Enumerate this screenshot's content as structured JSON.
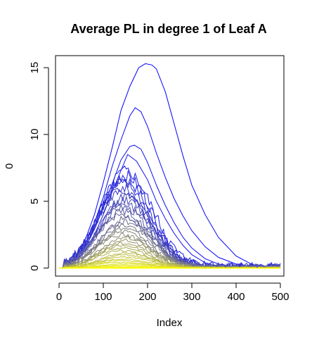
{
  "chart_data": {
    "type": "line",
    "title": "Average PL in degree 1 of Leaf A",
    "xlabel": "Index",
    "ylabel": "0",
    "xlim": [
      -8,
      508
    ],
    "ylim": [
      -0.6,
      15.9
    ],
    "xticks": [
      0,
      100,
      200,
      300,
      400,
      500
    ],
    "yticks": [
      0,
      5,
      10,
      15
    ],
    "grid": false,
    "legend": "none",
    "series_count": 40,
    "color_start": "#0000ff",
    "color_mid": "#808080",
    "color_end": "#ffff00",
    "series": [
      {
        "x": [
          0,
          10,
          20,
          40,
          60,
          80,
          100,
          120,
          140,
          160,
          180,
          195,
          210,
          220,
          240,
          260,
          280,
          300,
          330,
          360,
          400,
          440,
          500
        ],
        "y": [
          0,
          0,
          0.2,
          0.9,
          2.2,
          4.0,
          6.4,
          9.0,
          11.8,
          13.6,
          15.0,
          15.3,
          15.2,
          14.9,
          13.2,
          10.8,
          8.4,
          6.2,
          4.0,
          2.3,
          0.9,
          0.2,
          0
        ]
      },
      {
        "x": [
          0,
          10,
          20,
          40,
          60,
          80,
          100,
          120,
          140,
          160,
          172,
          185,
          200,
          220,
          240,
          260,
          280,
          300,
          330,
          360,
          400,
          440,
          500
        ],
        "y": [
          0,
          0,
          0.2,
          0.8,
          1.9,
          3.4,
          5.3,
          7.6,
          9.6,
          11.4,
          12.0,
          11.7,
          10.6,
          8.6,
          6.8,
          5.2,
          3.9,
          2.8,
          1.6,
          0.8,
          0.3,
          0.1,
          0
        ]
      },
      {
        "x": [
          0,
          10,
          20,
          40,
          60,
          80,
          100,
          120,
          140,
          160,
          170,
          185,
          200,
          220,
          240,
          260,
          280,
          300,
          330,
          360,
          400,
          500
        ],
        "y": [
          0,
          0,
          0.2,
          0.7,
          1.6,
          2.9,
          4.5,
          6.3,
          8.1,
          9.1,
          9.2,
          8.9,
          7.9,
          6.2,
          4.7,
          3.4,
          2.3,
          1.5,
          0.7,
          0.3,
          0.1,
          0
        ]
      },
      {
        "x": [
          0,
          10,
          20,
          40,
          60,
          80,
          100,
          120,
          140,
          155,
          175,
          200,
          220,
          240,
          260,
          280,
          300,
          330,
          360,
          500
        ],
        "y": [
          0,
          0,
          0.2,
          0.6,
          1.4,
          2.5,
          4.0,
          5.7,
          7.3,
          8.5,
          8.0,
          6.6,
          5.0,
          3.7,
          2.6,
          1.7,
          1.0,
          0.4,
          0.1,
          0
        ]
      }
    ],
    "generated_series_note": ""
  }
}
